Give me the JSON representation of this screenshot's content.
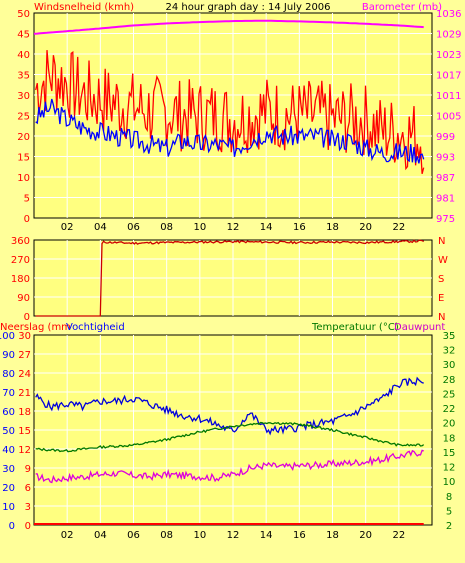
{
  "header": {
    "left_title": "Windsnelheid (kmh)",
    "center_title": "24 hour graph day : 14 July 2006",
    "right_title": "Barometer (mb)"
  },
  "colors": {
    "background": "#ffff99",
    "plot_bg": "#ffff80",
    "grid": "#ffffff",
    "wind": "#ff0000",
    "gust": "#0000ff",
    "barometer": "#ff00ff",
    "direction": "#cc0000",
    "temperature": "#0000dd",
    "humidity": "#007700",
    "dewpoint": "#dd00dd",
    "rain": "#ff0000",
    "axis_red": "#ff0000",
    "axis_blue": "#0000ff",
    "axis_green": "#007700",
    "axis_magenta": "#cc00cc"
  },
  "chart_data": [
    {
      "type": "line",
      "title": "24 hour graph day : 14 July 2006",
      "ylabel_left": "Windsnelheid (kmh)",
      "ylabel_right": "Barometer (mb)",
      "x_ticks": [
        "02",
        "04",
        "06",
        "08",
        "10",
        "12",
        "14",
        "16",
        "18",
        "20",
        "22"
      ],
      "xlim": [
        0,
        24
      ],
      "y_left_ticks": [
        "50",
        "45",
        "40",
        "35",
        "30",
        "25",
        "20",
        "15",
        "10",
        "5",
        "0"
      ],
      "y_left_lim": [
        0,
        50
      ],
      "y_right_ticks": [
        "1036",
        "1029",
        "1023",
        "1017",
        "1011",
        "1005",
        "999",
        "993",
        "987",
        "981",
        "975"
      ],
      "y_right_lim": [
        975,
        1036
      ],
      "series": [
        {
          "key": "barometer",
          "x": [
            0,
            2,
            4,
            6,
            8,
            10,
            12,
            14,
            16,
            18,
            20,
            22,
            23.5
          ],
          "values": [
            1029.8,
            1030.6,
            1031.4,
            1032.3,
            1032.9,
            1033.3,
            1033.6,
            1033.7,
            1033.5,
            1033.2,
            1032.8,
            1032.3,
            1031.8
          ]
        },
        {
          "key": "wind",
          "x": [
            0,
            1,
            2,
            3,
            4,
            5,
            6,
            7,
            8,
            9,
            10,
            11,
            12,
            13,
            14,
            15,
            16,
            17,
            18,
            19,
            20,
            21,
            22,
            23,
            23.5
          ],
          "values": [
            31,
            35,
            33,
            30,
            29,
            28,
            27,
            26,
            26,
            25,
            25,
            25,
            24,
            25,
            26,
            25,
            25,
            25,
            24,
            24,
            24,
            21,
            21,
            20,
            19
          ]
        },
        {
          "key": "gust",
          "x": [
            0,
            1,
            2,
            3,
            4,
            5,
            6,
            7,
            8,
            9,
            10,
            11,
            12,
            13,
            14,
            15,
            16,
            17,
            18,
            19,
            20,
            21,
            22,
            23,
            23.5
          ],
          "values": [
            24,
            27,
            24,
            22,
            21,
            20,
            19,
            18,
            17,
            19,
            18,
            18,
            17,
            19,
            21,
            20,
            20,
            20,
            19,
            19,
            17,
            16,
            16,
            16,
            15
          ]
        }
      ]
    },
    {
      "type": "line",
      "y_ticks": [
        "360",
        "270",
        "180",
        "90",
        "0"
      ],
      "ylim": [
        0,
        360
      ],
      "y_right_ticks": [
        "N",
        "W",
        "S",
        "E",
        "N"
      ],
      "series": [
        {
          "key": "direction",
          "x": [
            0,
            0.5,
            4.0,
            4.1,
            6,
            8,
            10,
            12,
            14,
            16,
            18,
            20,
            22,
            23.5
          ],
          "values": [
            0,
            0,
            0,
            350,
            345,
            348,
            350,
            352,
            350,
            348,
            350,
            348,
            352,
            355
          ]
        }
      ]
    },
    {
      "type": "line",
      "ylabel_left": "Neerslag (mm",
      "ylabel_left2": "Vochtigheid",
      "ylabel_right": "Temperatuur (°C)",
      "ylabel_right2": "Dauwpunt",
      "x_ticks": [
        "02",
        "04",
        "06",
        "08",
        "10",
        "12",
        "14",
        "16",
        "18",
        "20",
        "22"
      ],
      "xlim": [
        0,
        24
      ],
      "y_hum_ticks": [
        "100",
        "90",
        "80",
        "70",
        "60",
        "50",
        "40",
        "30",
        "20",
        "10",
        "0"
      ],
      "y_hum_lim": [
        0,
        100
      ],
      "y_rain_ticks": [
        "30",
        "27",
        "24",
        "21",
        "18",
        "15",
        "12",
        "9",
        "6",
        "3",
        "0"
      ],
      "y_rain_lim": [
        0,
        30
      ],
      "y_temp_ticks": [
        "35",
        "32",
        "30",
        "28",
        "25",
        "22",
        "20",
        "18",
        "15",
        "12",
        "10",
        "8",
        "5",
        "2"
      ],
      "y_temp_lim": [
        2,
        35
      ],
      "series": [
        {
          "key": "temperature",
          "x": [
            0,
            1,
            2,
            3,
            4,
            5,
            6,
            7,
            8,
            9,
            10,
            11,
            12,
            13,
            14,
            15,
            16,
            17,
            18,
            19,
            20,
            21,
            22,
            23,
            23.5
          ],
          "values": [
            24.5,
            22.5,
            23,
            22.5,
            23.5,
            23.5,
            24,
            23,
            22,
            21,
            20.5,
            19.5,
            18.2,
            21.5,
            18.5,
            18.5,
            19,
            19.5,
            20,
            21,
            22.5,
            24,
            26.5,
            27,
            27
          ]
        },
        {
          "key": "humidity",
          "x": [
            0,
            2,
            4,
            6,
            8,
            10,
            12,
            14,
            16,
            18,
            20,
            22,
            23.5
          ],
          "values": [
            40,
            39,
            41,
            42,
            45,
            49,
            52,
            54,
            53,
            50,
            46,
            42,
            42
          ]
        },
        {
          "key": "dewpoint",
          "x": [
            0,
            1,
            2,
            3,
            4,
            5,
            6,
            7,
            8,
            9,
            10,
            11,
            12,
            13,
            14,
            15,
            16,
            17,
            18,
            19,
            20,
            21,
            22,
            23,
            23.5
          ],
          "values": [
            10.5,
            9.8,
            10.2,
            10.4,
            10.8,
            11,
            10.6,
            10.4,
            10.8,
            10.6,
            10.4,
            10.2,
            10.8,
            11.8,
            12.4,
            12.1,
            12.3,
            12.4,
            12.6,
            12.8,
            13.0,
            13.4,
            14.0,
            14.5,
            14.8
          ]
        },
        {
          "key": "rain",
          "x": [
            0,
            23.5
          ],
          "values": [
            0,
            0
          ]
        }
      ]
    }
  ]
}
